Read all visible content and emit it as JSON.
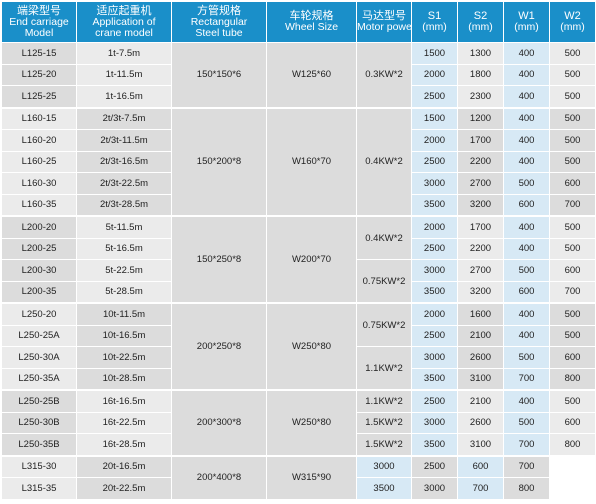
{
  "headers": [
    {
      "zh": "端梁型号",
      "en1": "End carriage",
      "en2": "Model"
    },
    {
      "zh": "适应起重机",
      "en1": "Application of",
      "en2": "crane model"
    },
    {
      "zh": "方管规格",
      "en1": "Rectangular",
      "en2": "Steel tube"
    },
    {
      "zh": "车轮规格",
      "en1": "Wheel Size",
      "en2": ""
    },
    {
      "zh": "马达型号",
      "en1": "Motor power",
      "en2": ""
    },
    {
      "zh": "S1",
      "en1": "(mm)",
      "en2": ""
    },
    {
      "zh": "S2",
      "en1": "(mm)",
      "en2": ""
    },
    {
      "zh": "W1",
      "en1": "(mm)",
      "en2": ""
    },
    {
      "zh": "W2",
      "en1": "(mm)",
      "en2": ""
    }
  ],
  "groups": [
    {
      "tube": "150*150*6",
      "wheel": "W125*60"
    },
    {
      "tube": "150*200*8",
      "wheel": "W160*70"
    },
    {
      "tube": "150*250*8",
      "wheel": "W200*70"
    },
    {
      "tube": "200*250*8",
      "wheel": "W250*80"
    },
    {
      "tube": "200*300*8",
      "wheel": "W250*80"
    },
    {
      "tube": "200*400*8",
      "wheel": "W315*90"
    }
  ],
  "motors": [
    "0.3KW*2",
    "0.4KW*2",
    "0.4KW*2",
    "0.75KW*2",
    "0.75KW*2",
    "1.1KW*2",
    "1.1KW*2",
    "1.5KW*2",
    "1.5KW*2"
  ],
  "rows": [
    {
      "model": "L125-15",
      "app": "1t-7.5m",
      "s1": "1500",
      "s2": "1300",
      "w1": "400",
      "w2": "500"
    },
    {
      "model": "L125-20",
      "app": "1t-11.5m",
      "s1": "2000",
      "s2": "1800",
      "w1": "400",
      "w2": "500"
    },
    {
      "model": "L125-25",
      "app": "1t-16.5m",
      "s1": "2500",
      "s2": "2300",
      "w1": "400",
      "w2": "500"
    },
    {
      "model": "L160-15",
      "app": "2t/3t-7.5m",
      "s1": "1500",
      "s2": "1200",
      "w1": "400",
      "w2": "500"
    },
    {
      "model": "L160-20",
      "app": "2t/3t-11.5m",
      "s1": "2000",
      "s2": "1700",
      "w1": "400",
      "w2": "500"
    },
    {
      "model": "L160-25",
      "app": "2t/3t-16.5m",
      "s1": "2500",
      "s2": "2200",
      "w1": "400",
      "w2": "500"
    },
    {
      "model": "L160-30",
      "app": "2t/3t-22.5m",
      "s1": "3000",
      "s2": "2700",
      "w1": "500",
      "w2": "600"
    },
    {
      "model": "L160-35",
      "app": "2t/3t-28.5m",
      "s1": "3500",
      "s2": "3200",
      "w1": "600",
      "w2": "700"
    },
    {
      "model": "L200-20",
      "app": "5t-11.5m",
      "s1": "2000",
      "s2": "1700",
      "w1": "400",
      "w2": "500"
    },
    {
      "model": "L200-25",
      "app": "5t-16.5m",
      "s1": "2500",
      "s2": "2200",
      "w1": "400",
      "w2": "500"
    },
    {
      "model": "L200-30",
      "app": "5t-22.5m",
      "s1": "3000",
      "s2": "2700",
      "w1": "500",
      "w2": "600"
    },
    {
      "model": "L200-35",
      "app": "5t-28.5m",
      "s1": "3500",
      "s2": "3200",
      "w1": "600",
      "w2": "700"
    },
    {
      "model": "L250-20",
      "app": "10t-11.5m",
      "s1": "2000",
      "s2": "1600",
      "w1": "400",
      "w2": "500"
    },
    {
      "model": "L250-25A",
      "app": "10t-16.5m",
      "s1": "2500",
      "s2": "2100",
      "w1": "400",
      "w2": "500"
    },
    {
      "model": "L250-30A",
      "app": "10t-22.5m",
      "s1": "3000",
      "s2": "2600",
      "w1": "500",
      "w2": "600"
    },
    {
      "model": "L250-35A",
      "app": "10t-28.5m",
      "s1": "3500",
      "s2": "3100",
      "w1": "700",
      "w2": "800"
    },
    {
      "model": "L250-25B",
      "app": "16t-16.5m",
      "s1": "2500",
      "s2": "2100",
      "w1": "400",
      "w2": "500"
    },
    {
      "model": "L250-30B",
      "app": "16t-22.5m",
      "s1": "3000",
      "s2": "2600",
      "w1": "500",
      "w2": "600"
    },
    {
      "model": "L250-35B",
      "app": "16t-28.5m",
      "s1": "3500",
      "s2": "3100",
      "w1": "700",
      "w2": "800"
    },
    {
      "model": "L315-30",
      "app": "20t-16.5m",
      "s1": "3000",
      "s2": "2500",
      "w1": "600",
      "w2": "700"
    },
    {
      "model": "L315-35",
      "app": "20t-22.5m",
      "s1": "3500",
      "s2": "3000",
      "w1": "700",
      "w2": "800"
    }
  ],
  "colors": {
    "header": "#1a8fc9",
    "gray_dark": "#dcdcdc",
    "gray_light": "#ebebeb",
    "blue_light": "#d7e9f5"
  }
}
